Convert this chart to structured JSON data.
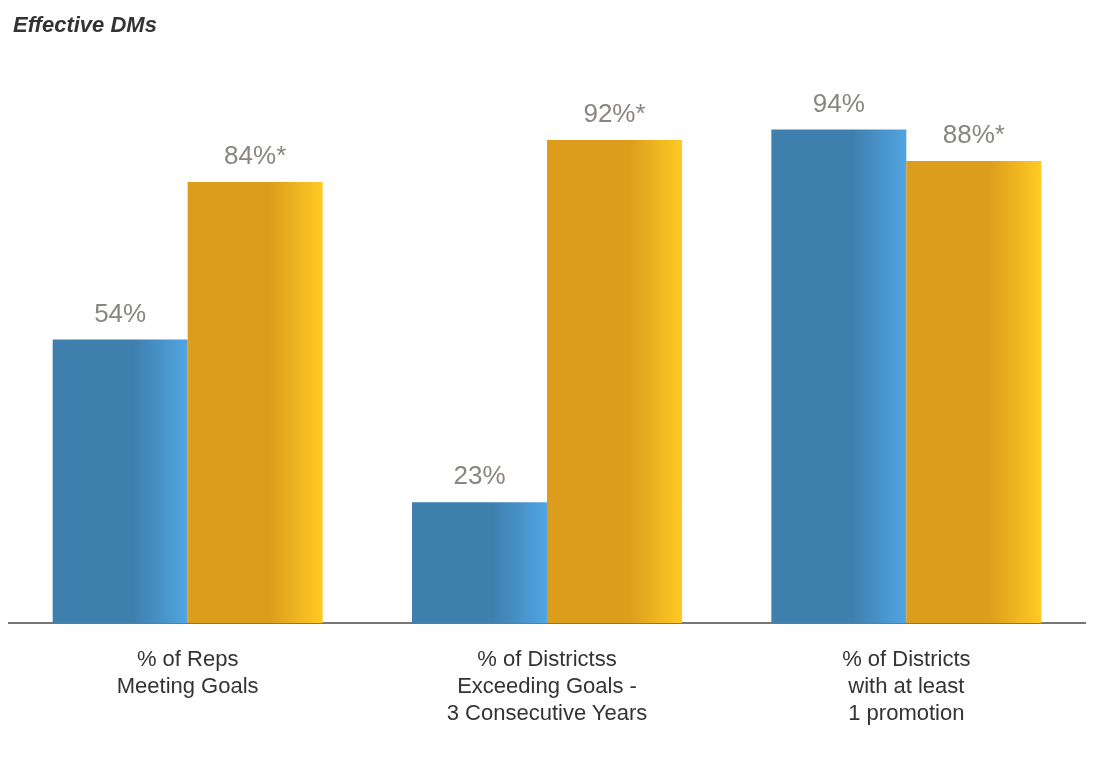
{
  "chart_data": {
    "type": "bar",
    "title": "Effective DMs",
    "categories": [
      "% of Reps\nMeeting Goals",
      "% of Districtss\nExceeding Goals -\n3 Consecutive Years",
      "% of Districts\nwith at least\n1 promotion"
    ],
    "series": [
      {
        "color": "#3f7fae",
        "values": [
          54,
          23,
          94
        ],
        "value_labels": [
          "54%",
          "23%",
          "94%"
        ]
      },
      {
        "color": "#dc9c1c",
        "values": [
          84,
          92,
          88
        ],
        "value_labels": [
          "84%*",
          "92%*",
          "88%*"
        ]
      }
    ],
    "stacked": false
  }
}
